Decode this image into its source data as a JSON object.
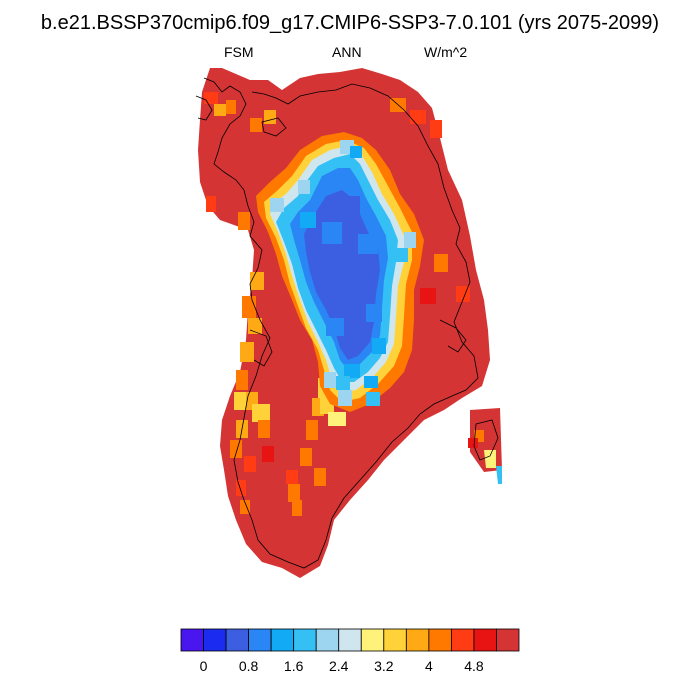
{
  "title": "b.e21.BSSP370cmip6.f09_g17.CMIP6-SSP3-7.0.101 (yrs 2075-2099)",
  "subtitle": {
    "left": "FSM",
    "center": "ANN",
    "right": "W/m^2"
  },
  "colorbar": {
    "colors": [
      "#4a16f0",
      "#1b2bf0",
      "#3b5fe0",
      "#2a86f5",
      "#12aaf5",
      "#35c0f5",
      "#9dd4ef",
      "#cfe6ee",
      "#fff27a",
      "#ffd23a",
      "#ffaa14",
      "#ff7800",
      "#ff3c14",
      "#e81414",
      "#d43434"
    ],
    "labels": [
      "0",
      "0.8",
      "1.6",
      "2.4",
      "3.2",
      "4",
      "4.8"
    ]
  },
  "chart_data": {
    "type": "heatmap",
    "variable": "FSM",
    "period": "ANN",
    "units": "W/m^2",
    "region": "Greenland",
    "color_levels": [
      0,
      0.4,
      0.8,
      1.2,
      1.6,
      2.0,
      2.4,
      2.8,
      3.2,
      3.6,
      4.0,
      4.4,
      4.8,
      5.2
    ],
    "interior_value_range": [
      0.4,
      2.4
    ],
    "margin_value_range": [
      3.2,
      5.2
    ]
  }
}
